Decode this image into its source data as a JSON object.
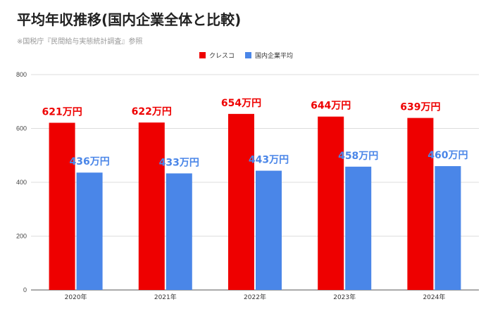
{
  "title": "平均年収推移(国内企業全体と比較)",
  "subtitle": "※国税庁『民間給与実態統計調査』参照",
  "colors": {
    "kresco": "#ee0000",
    "national": "#4a86e8",
    "grid": "#dddddd",
    "axis": "#555555"
  },
  "chart_data": {
    "type": "bar",
    "categories": [
      "2020年",
      "2021年",
      "2022年",
      "2023年",
      "2024年"
    ],
    "series": [
      {
        "name": "クレスコ",
        "values": [
          621,
          622,
          654,
          644,
          639
        ],
        "labels": [
          "621万円",
          "622万円",
          "654万円",
          "644万円",
          "639万円"
        ]
      },
      {
        "name": "国内企業平均",
        "values": [
          436,
          433,
          443,
          458,
          460
        ],
        "labels": [
          "436万円",
          "433万円",
          "443万円",
          "458万円",
          "460万円"
        ]
      }
    ],
    "yticks": [
      0,
      200,
      400,
      600,
      800
    ],
    "ylim": [
      0,
      800
    ],
    "grid": true,
    "legend": "top-center"
  }
}
